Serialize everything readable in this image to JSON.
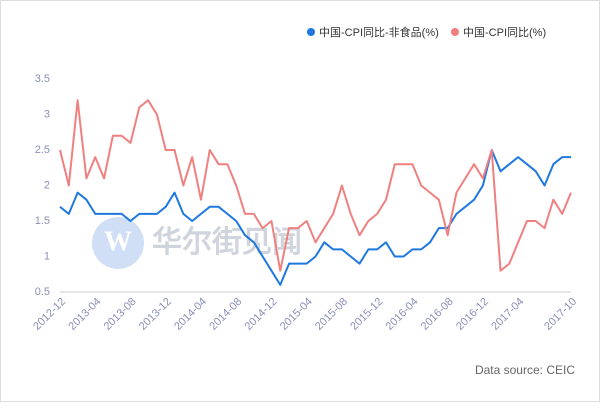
{
  "chart_data": {
    "type": "line",
    "watermark": "华尔街见闻",
    "source": "Data source: CEIC",
    "categories": [
      "2012-12",
      null,
      null,
      null,
      "2013-04",
      null,
      null,
      null,
      "2013-08",
      null,
      null,
      null,
      "2013-12",
      null,
      null,
      null,
      "2014-04",
      null,
      null,
      null,
      "2014-08",
      null,
      null,
      null,
      "2014-12",
      null,
      null,
      null,
      "2015-04",
      null,
      null,
      null,
      "2015-08",
      null,
      null,
      null,
      "2015-12",
      null,
      null,
      null,
      "2016-04",
      null,
      null,
      null,
      "2016-08",
      null,
      null,
      null,
      "2016-12",
      null,
      null,
      null,
      "2017-04",
      null,
      null,
      null,
      null,
      null,
      "2017-10"
    ],
    "series": [
      {
        "name": "中国-CPI同比-非食品(%)",
        "color": "#1f78e0",
        "values": [
          1.7,
          1.6,
          1.9,
          1.8,
          1.6,
          1.6,
          1.6,
          1.6,
          1.5,
          1.6,
          1.6,
          1.6,
          1.7,
          1.9,
          1.6,
          1.5,
          1.6,
          1.7,
          1.7,
          1.6,
          1.5,
          1.3,
          1.2,
          1.0,
          0.8,
          0.6,
          0.9,
          0.9,
          0.9,
          1.0,
          1.2,
          1.1,
          1.1,
          1.0,
          0.9,
          1.1,
          1.1,
          1.2,
          1.0,
          1.0,
          1.1,
          1.1,
          1.2,
          1.4,
          1.4,
          1.6,
          1.7,
          1.8,
          2.0,
          2.5,
          2.2,
          2.3,
          2.4,
          2.3,
          2.2,
          2.0,
          2.3,
          2.4,
          2.4
        ]
      },
      {
        "name": "中国-CPI同比(%)",
        "color": "#f08080",
        "values": [
          2.5,
          2.0,
          3.2,
          2.1,
          2.4,
          2.1,
          2.7,
          2.7,
          2.6,
          3.1,
          3.2,
          3.0,
          2.5,
          2.5,
          2.0,
          2.4,
          1.8,
          2.5,
          2.3,
          2.3,
          2.0,
          1.6,
          1.6,
          1.4,
          1.5,
          0.8,
          1.4,
          1.4,
          1.5,
          1.2,
          1.4,
          1.6,
          2.0,
          1.6,
          1.3,
          1.5,
          1.6,
          1.8,
          2.3,
          2.3,
          2.3,
          2.0,
          1.9,
          1.8,
          1.3,
          1.9,
          2.1,
          2.3,
          2.1,
          2.5,
          0.8,
          0.9,
          1.2,
          1.5,
          1.5,
          1.4,
          1.8,
          1.6,
          1.9
        ]
      }
    ],
    "ylim": [
      0.5,
      3.5
    ],
    "yticks": [
      0.5,
      1.0,
      1.5,
      2.0,
      2.5,
      3.0,
      3.5
    ]
  }
}
